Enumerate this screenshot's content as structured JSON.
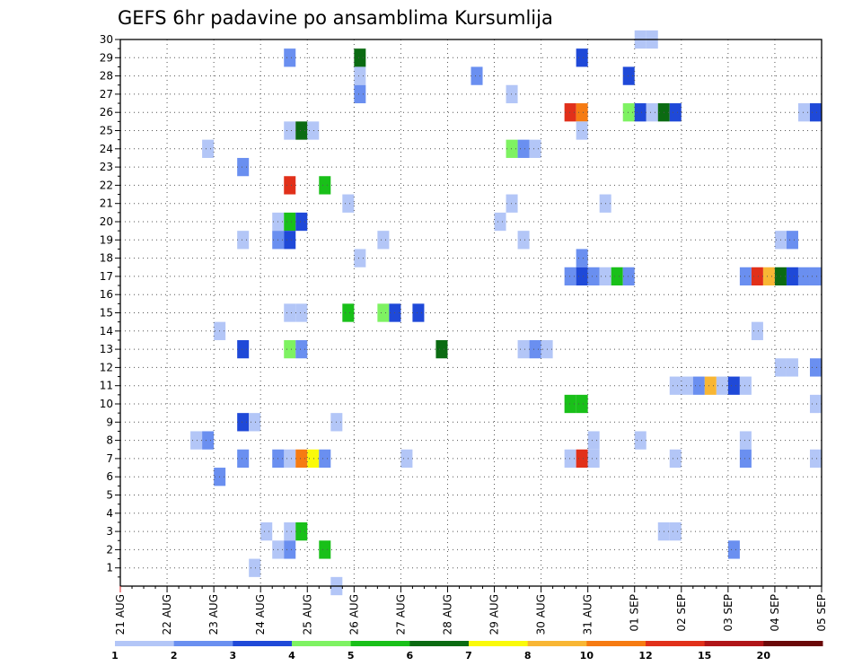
{
  "chart_data": {
    "type": "heatmap",
    "title": "GEFS 6hr padavine po ansamblima Kursumlija",
    "xlabel": "",
    "ylabel": "",
    "x_tick_labels": [
      "21 AUG",
      "22 AUG",
      "23 AUG",
      "24 AUG",
      "25 AUG",
      "26 AUG",
      "27 AUG",
      "28 AUG",
      "29 AUG",
      "30 AUG",
      "31 AUG",
      "01 SEP",
      "02 SEP",
      "03 SEP",
      "04 SEP",
      "05 SEP"
    ],
    "y_tick_labels": [
      "1",
      "2",
      "3",
      "4",
      "5",
      "6",
      "7",
      "8",
      "9",
      "10",
      "11",
      "12",
      "13",
      "14",
      "15",
      "16",
      "17",
      "18",
      "19",
      "20",
      "21",
      "22",
      "23",
      "24",
      "25",
      "26",
      "27",
      "28",
      "29",
      "30"
    ],
    "xlim": [
      0,
      60
    ],
    "ylim": [
      0,
      30
    ],
    "x_step_hours": 6,
    "grid": true,
    "colorbar": {
      "levels": [
        1,
        2,
        3,
        4,
        5,
        6,
        7,
        8,
        10,
        12,
        15,
        20
      ],
      "labels": [
        "1",
        "2",
        "3",
        "4",
        "5",
        "6",
        "7",
        "8",
        "10",
        "12",
        "15",
        "20"
      ],
      "colors": [
        "#b3c6f7",
        "#6a8ff0",
        "#1f49d8",
        "#7ef262",
        "#19c019",
        "#0b6b12",
        "#fafa0a",
        "#f8b634",
        "#f67b12",
        "#e1301a",
        "#b01518",
        "#6a0808"
      ]
    },
    "cells": [
      [
        44,
        1,
        30
      ],
      [
        45,
        1,
        30
      ],
      [
        14,
        2,
        29
      ],
      [
        20,
        6,
        29
      ],
      [
        39,
        3,
        29
      ],
      [
        20,
        1,
        28
      ],
      [
        30,
        2,
        28
      ],
      [
        43,
        3,
        28
      ],
      [
        20,
        2,
        27
      ],
      [
        33,
        1,
        27
      ],
      [
        38,
        10,
        26
      ],
      [
        39,
        9,
        26
      ],
      [
        43,
        4,
        26
      ],
      [
        44,
        3,
        26
      ],
      [
        45,
        1,
        26
      ],
      [
        46,
        6,
        26
      ],
      [
        47,
        3,
        26
      ],
      [
        58,
        1,
        26
      ],
      [
        59,
        3,
        26
      ],
      [
        14,
        1,
        25
      ],
      [
        15,
        6,
        25
      ],
      [
        16,
        1,
        25
      ],
      [
        39,
        1,
        25
      ],
      [
        7,
        1,
        24
      ],
      [
        33,
        4,
        24
      ],
      [
        34,
        2,
        24
      ],
      [
        35,
        1,
        24
      ],
      [
        10,
        2,
        23
      ],
      [
        14,
        10,
        22
      ],
      [
        17,
        5,
        22
      ],
      [
        41,
        1,
        21
      ],
      [
        19,
        1,
        21
      ],
      [
        33,
        1,
        21
      ],
      [
        13,
        1,
        20
      ],
      [
        14,
        5,
        20
      ],
      [
        15,
        3,
        20
      ],
      [
        32,
        1,
        20
      ],
      [
        10,
        1,
        19
      ],
      [
        13,
        2,
        19
      ],
      [
        14,
        3,
        19
      ],
      [
        22,
        1,
        19
      ],
      [
        34,
        1,
        19
      ],
      [
        56,
        1,
        19
      ],
      [
        57,
        2,
        19
      ],
      [
        20,
        1,
        18
      ],
      [
        39,
        2,
        18
      ],
      [
        38,
        2,
        17
      ],
      [
        39,
        3,
        17
      ],
      [
        40,
        2,
        17
      ],
      [
        41,
        1,
        17
      ],
      [
        42,
        5,
        17
      ],
      [
        43,
        2,
        17
      ],
      [
        53,
        2,
        17
      ],
      [
        54,
        10,
        17
      ],
      [
        55,
        8,
        17
      ],
      [
        56,
        6,
        17
      ],
      [
        57,
        3,
        17
      ],
      [
        58,
        2,
        17
      ],
      [
        59,
        2,
        17
      ],
      [
        14,
        1,
        15
      ],
      [
        15,
        1,
        15
      ],
      [
        19,
        5,
        15
      ],
      [
        22,
        4,
        15
      ],
      [
        23,
        3,
        15
      ],
      [
        25,
        3,
        15
      ],
      [
        8,
        1,
        14
      ],
      [
        54,
        1,
        14
      ],
      [
        14,
        4,
        13
      ],
      [
        15,
        2,
        13
      ],
      [
        10,
        3,
        13
      ],
      [
        27,
        6,
        13
      ],
      [
        34,
        1,
        13
      ],
      [
        35,
        2,
        13
      ],
      [
        36,
        1,
        13
      ],
      [
        56,
        1,
        12
      ],
      [
        57,
        1,
        12
      ],
      [
        59,
        2,
        12
      ],
      [
        47,
        1,
        11
      ],
      [
        48,
        1,
        11
      ],
      [
        49,
        2,
        11
      ],
      [
        50,
        8,
        11
      ],
      [
        51,
        1,
        11
      ],
      [
        52,
        3,
        11
      ],
      [
        53,
        1,
        11
      ],
      [
        38,
        5,
        10
      ],
      [
        39,
        5,
        10
      ],
      [
        59,
        1,
        10
      ],
      [
        10,
        3,
        9
      ],
      [
        11,
        1,
        9
      ],
      [
        18,
        1,
        9
      ],
      [
        6,
        1,
        8
      ],
      [
        7,
        2,
        8
      ],
      [
        40,
        1,
        8
      ],
      [
        44,
        1,
        8
      ],
      [
        53,
        1,
        8
      ],
      [
        14,
        1,
        7
      ],
      [
        15,
        9,
        7
      ],
      [
        16,
        7,
        7
      ],
      [
        17,
        2,
        7
      ],
      [
        38,
        1,
        7
      ],
      [
        39,
        10,
        7
      ],
      [
        40,
        1,
        7
      ],
      [
        10,
        2,
        7
      ],
      [
        13,
        2,
        7
      ],
      [
        24,
        1,
        7
      ],
      [
        47,
        1,
        7
      ],
      [
        53,
        2,
        7
      ],
      [
        59,
        1,
        7
      ],
      [
        8,
        2,
        6
      ],
      [
        12,
        1,
        3
      ],
      [
        14,
        1,
        3
      ],
      [
        15,
        5,
        3
      ],
      [
        46,
        1,
        3
      ],
      [
        47,
        1,
        3
      ],
      [
        13,
        1,
        2
      ],
      [
        14,
        2,
        2
      ],
      [
        17,
        5,
        2
      ],
      [
        52,
        2,
        2
      ],
      [
        11,
        1,
        1
      ],
      [
        18,
        1,
        0
      ]
    ]
  }
}
